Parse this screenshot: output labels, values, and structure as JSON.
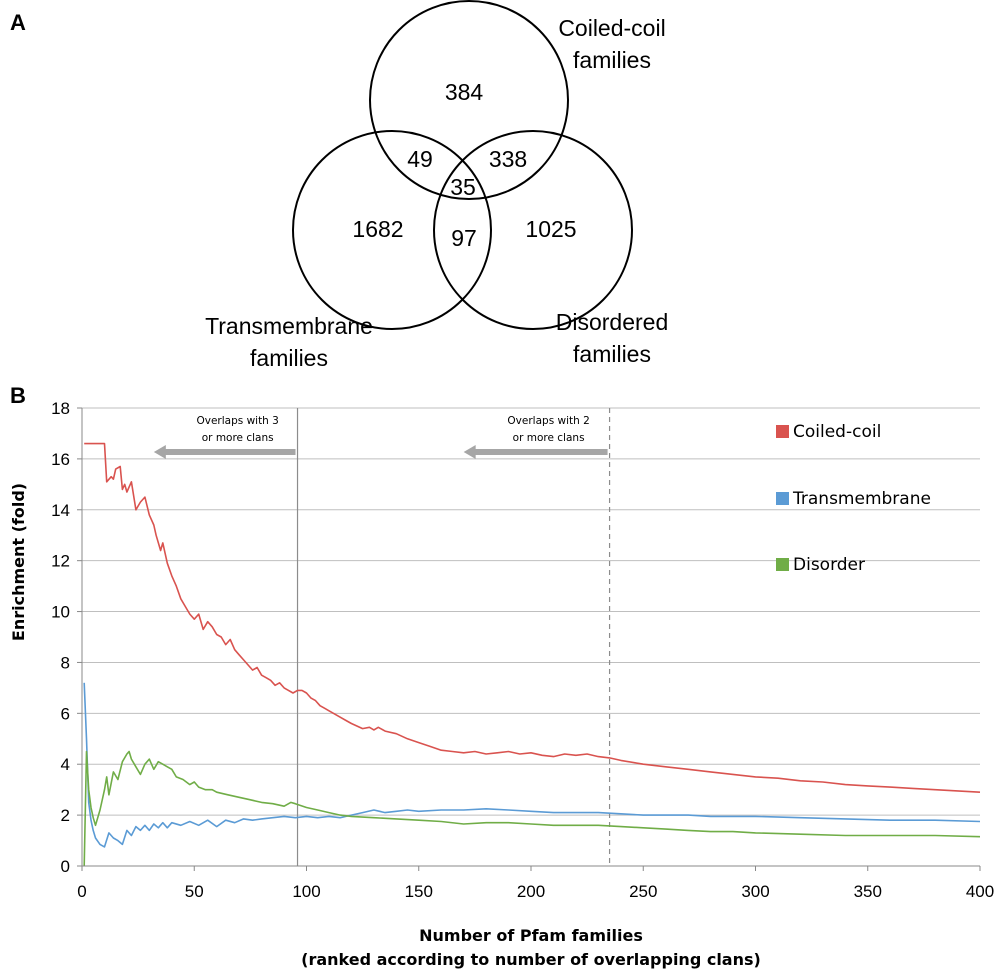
{
  "panel_a_label": "A",
  "panel_b_label": "B",
  "venn": {
    "sets": [
      {
        "label_line1": "Coiled-coil",
        "label_line2": "families"
      },
      {
        "label_line1": "Transmembrane",
        "label_line2": "families"
      },
      {
        "label_line1": "Disordered",
        "label_line2": "families"
      }
    ],
    "regions": {
      "coiled_only": "384",
      "transmembrane_only": "1682",
      "disordered_only": "1025",
      "coiled_transmembrane": "49",
      "coiled_disordered": "338",
      "transmembrane_disordered": "97",
      "all_three": "35"
    }
  },
  "chart_data": {
    "type": "line",
    "title": "",
    "xlabel": "Number of Pfam families",
    "xlabel_line2": "(ranked according to number of overlapping clans)",
    "ylabel": "Enrichment (fold)",
    "xlim": [
      0,
      400
    ],
    "ylim": [
      0,
      18
    ],
    "xticks": [
      0,
      50,
      100,
      150,
      200,
      250,
      300,
      350,
      400
    ],
    "yticks": [
      0,
      2,
      4,
      6,
      8,
      10,
      12,
      14,
      16,
      18
    ],
    "grid": "horizontal",
    "legend_position": "right",
    "series": [
      {
        "name": "Coiled-coil",
        "color": "#d9534f",
        "points": [
          [
            1,
            16.6
          ],
          [
            10,
            16.6
          ],
          [
            11,
            15.1
          ],
          [
            13,
            15.3
          ],
          [
            14,
            15.2
          ],
          [
            15,
            15.6
          ],
          [
            17,
            15.7
          ],
          [
            18,
            14.8
          ],
          [
            19,
            15.0
          ],
          [
            20,
            14.7
          ],
          [
            22,
            15.1
          ],
          [
            24,
            14.0
          ],
          [
            26,
            14.3
          ],
          [
            28,
            14.5
          ],
          [
            30,
            13.8
          ],
          [
            32,
            13.4
          ],
          [
            33,
            13.0
          ],
          [
            35,
            12.4
          ],
          [
            36,
            12.7
          ],
          [
            38,
            11.9
          ],
          [
            40,
            11.4
          ],
          [
            42,
            11.0
          ],
          [
            44,
            10.5
          ],
          [
            46,
            10.2
          ],
          [
            48,
            9.9
          ],
          [
            50,
            9.7
          ],
          [
            52,
            9.9
          ],
          [
            54,
            9.3
          ],
          [
            56,
            9.6
          ],
          [
            58,
            9.4
          ],
          [
            60,
            9.1
          ],
          [
            62,
            9.0
          ],
          [
            64,
            8.7
          ],
          [
            66,
            8.9
          ],
          [
            68,
            8.5
          ],
          [
            70,
            8.3
          ],
          [
            72,
            8.1
          ],
          [
            74,
            7.9
          ],
          [
            76,
            7.7
          ],
          [
            78,
            7.8
          ],
          [
            80,
            7.5
          ],
          [
            82,
            7.4
          ],
          [
            84,
            7.3
          ],
          [
            86,
            7.1
          ],
          [
            88,
            7.2
          ],
          [
            90,
            7.0
          ],
          [
            92,
            6.9
          ],
          [
            94,
            6.8
          ],
          [
            96,
            6.9
          ],
          [
            98,
            6.9
          ],
          [
            100,
            6.8
          ],
          [
            102,
            6.6
          ],
          [
            104,
            6.5
          ],
          [
            106,
            6.3
          ],
          [
            108,
            6.2
          ],
          [
            110,
            6.1
          ],
          [
            112,
            6.0
          ],
          [
            115,
            5.85
          ],
          [
            118,
            5.7
          ],
          [
            120,
            5.6
          ],
          [
            125,
            5.4
          ],
          [
            128,
            5.45
          ],
          [
            130,
            5.35
          ],
          [
            132,
            5.45
          ],
          [
            135,
            5.3
          ],
          [
            140,
            5.2
          ],
          [
            145,
            5.0
          ],
          [
            150,
            4.85
          ],
          [
            155,
            4.7
          ],
          [
            160,
            4.55
          ],
          [
            165,
            4.5
          ],
          [
            170,
            4.45
          ],
          [
            175,
            4.5
          ],
          [
            180,
            4.4
          ],
          [
            185,
            4.45
          ],
          [
            190,
            4.5
          ],
          [
            195,
            4.4
          ],
          [
            200,
            4.45
          ],
          [
            205,
            4.35
          ],
          [
            210,
            4.3
          ],
          [
            215,
            4.4
          ],
          [
            220,
            4.35
          ],
          [
            225,
            4.4
          ],
          [
            230,
            4.3
          ],
          [
            235,
            4.25
          ],
          [
            240,
            4.15
          ],
          [
            250,
            4.0
          ],
          [
            260,
            3.9
          ],
          [
            270,
            3.8
          ],
          [
            280,
            3.7
          ],
          [
            290,
            3.6
          ],
          [
            300,
            3.5
          ],
          [
            310,
            3.45
          ],
          [
            320,
            3.35
          ],
          [
            330,
            3.3
          ],
          [
            340,
            3.2
          ],
          [
            350,
            3.15
          ],
          [
            360,
            3.1
          ],
          [
            370,
            3.05
          ],
          [
            380,
            3.0
          ],
          [
            390,
            2.95
          ],
          [
            400,
            2.9
          ]
        ]
      },
      {
        "name": "Transmembrane",
        "color": "#5b9bd5",
        "points": [
          [
            1,
            7.2
          ],
          [
            2,
            5.0
          ],
          [
            3,
            2.5
          ],
          [
            4,
            1.8
          ],
          [
            5,
            1.4
          ],
          [
            6,
            1.1
          ],
          [
            8,
            0.85
          ],
          [
            10,
            0.75
          ],
          [
            12,
            1.3
          ],
          [
            14,
            1.1
          ],
          [
            16,
            1.0
          ],
          [
            18,
            0.85
          ],
          [
            20,
            1.4
          ],
          [
            22,
            1.2
          ],
          [
            24,
            1.55
          ],
          [
            26,
            1.4
          ],
          [
            28,
            1.6
          ],
          [
            30,
            1.4
          ],
          [
            32,
            1.65
          ],
          [
            34,
            1.5
          ],
          [
            36,
            1.7
          ],
          [
            38,
            1.5
          ],
          [
            40,
            1.7
          ],
          [
            44,
            1.6
          ],
          [
            48,
            1.75
          ],
          [
            52,
            1.6
          ],
          [
            56,
            1.8
          ],
          [
            60,
            1.55
          ],
          [
            64,
            1.8
          ],
          [
            68,
            1.7
          ],
          [
            72,
            1.85
          ],
          [
            76,
            1.8
          ],
          [
            80,
            1.85
          ],
          [
            85,
            1.9
          ],
          [
            90,
            1.95
          ],
          [
            95,
            1.9
          ],
          [
            100,
            1.95
          ],
          [
            105,
            1.9
          ],
          [
            110,
            1.95
          ],
          [
            115,
            1.9
          ],
          [
            120,
            2.0
          ],
          [
            125,
            2.1
          ],
          [
            130,
            2.2
          ],
          [
            135,
            2.1
          ],
          [
            140,
            2.15
          ],
          [
            145,
            2.2
          ],
          [
            150,
            2.15
          ],
          [
            160,
            2.2
          ],
          [
            170,
            2.2
          ],
          [
            180,
            2.25
          ],
          [
            190,
            2.2
          ],
          [
            200,
            2.15
          ],
          [
            210,
            2.1
          ],
          [
            220,
            2.1
          ],
          [
            230,
            2.1
          ],
          [
            240,
            2.05
          ],
          [
            250,
            2.0
          ],
          [
            260,
            2.0
          ],
          [
            270,
            2.0
          ],
          [
            280,
            1.95
          ],
          [
            290,
            1.95
          ],
          [
            300,
            1.95
          ],
          [
            320,
            1.9
          ],
          [
            340,
            1.85
          ],
          [
            360,
            1.8
          ],
          [
            380,
            1.8
          ],
          [
            400,
            1.75
          ]
        ]
      },
      {
        "name": "Disorder",
        "color": "#70ad47",
        "points": [
          [
            1,
            0.0
          ],
          [
            2,
            4.5
          ],
          [
            3,
            3.0
          ],
          [
            4,
            2.3
          ],
          [
            5,
            1.9
          ],
          [
            6,
            1.6
          ],
          [
            8,
            2.2
          ],
          [
            10,
            3.0
          ],
          [
            11,
            3.5
          ],
          [
            12,
            2.8
          ],
          [
            14,
            3.7
          ],
          [
            16,
            3.4
          ],
          [
            18,
            4.1
          ],
          [
            20,
            4.4
          ],
          [
            21,
            4.5
          ],
          [
            22,
            4.2
          ],
          [
            24,
            3.9
          ],
          [
            26,
            3.6
          ],
          [
            28,
            4.0
          ],
          [
            30,
            4.2
          ],
          [
            32,
            3.8
          ],
          [
            34,
            4.1
          ],
          [
            36,
            4.0
          ],
          [
            38,
            3.9
          ],
          [
            40,
            3.8
          ],
          [
            42,
            3.5
          ],
          [
            45,
            3.4
          ],
          [
            48,
            3.2
          ],
          [
            50,
            3.3
          ],
          [
            52,
            3.1
          ],
          [
            55,
            3.0
          ],
          [
            58,
            3.0
          ],
          [
            60,
            2.9
          ],
          [
            65,
            2.8
          ],
          [
            70,
            2.7
          ],
          [
            75,
            2.6
          ],
          [
            80,
            2.5
          ],
          [
            85,
            2.45
          ],
          [
            90,
            2.35
          ],
          [
            93,
            2.5
          ],
          [
            95,
            2.45
          ],
          [
            100,
            2.3
          ],
          [
            105,
            2.2
          ],
          [
            110,
            2.1
          ],
          [
            115,
            2.0
          ],
          [
            120,
            1.95
          ],
          [
            130,
            1.9
          ],
          [
            140,
            1.85
          ],
          [
            150,
            1.8
          ],
          [
            160,
            1.75
          ],
          [
            170,
            1.65
          ],
          [
            180,
            1.7
          ],
          [
            190,
            1.7
          ],
          [
            200,
            1.65
          ],
          [
            210,
            1.6
          ],
          [
            220,
            1.6
          ],
          [
            230,
            1.6
          ],
          [
            240,
            1.55
          ],
          [
            250,
            1.5
          ],
          [
            260,
            1.45
          ],
          [
            270,
            1.4
          ],
          [
            280,
            1.35
          ],
          [
            290,
            1.35
          ],
          [
            300,
            1.3
          ],
          [
            320,
            1.25
          ],
          [
            340,
            1.2
          ],
          [
            360,
            1.2
          ],
          [
            380,
            1.2
          ],
          [
            400,
            1.15
          ]
        ]
      }
    ],
    "annotations": [
      {
        "line1": "Overlaps with 3",
        "line2": "or more clans",
        "x_line": 96,
        "line_style": "solid",
        "arrow_from": 96,
        "arrow_to": 32
      },
      {
        "line1": "Overlaps with 2",
        "line2": "or more clans",
        "x_line": 235,
        "line_style": "dashed",
        "arrow_from": 235,
        "arrow_to": 170
      }
    ]
  }
}
